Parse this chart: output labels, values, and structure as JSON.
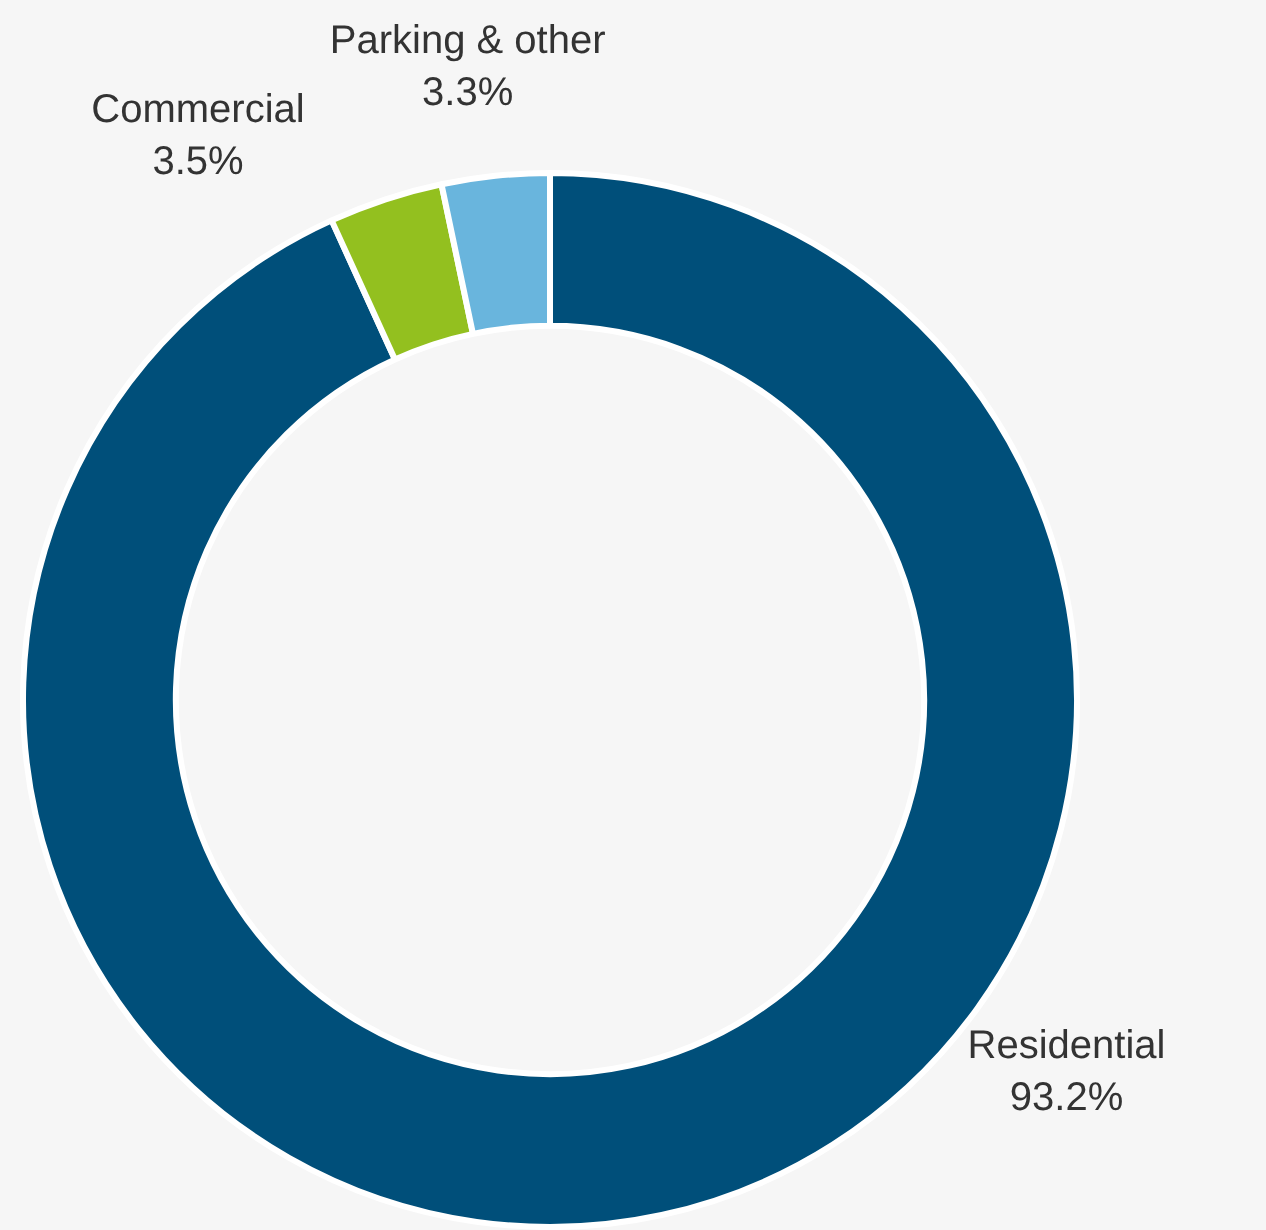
{
  "chart_data": {
    "type": "donut",
    "categories": [
      "Residential",
      "Commercial",
      "Parking & other"
    ],
    "values": [
      93.2,
      3.5,
      3.3
    ],
    "colors": [
      "#004f7a",
      "#93c01f",
      "#69b5dd"
    ],
    "value_labels": [
      "93.2%",
      "3.5%",
      "3.3%"
    ],
    "legend": false
  }
}
